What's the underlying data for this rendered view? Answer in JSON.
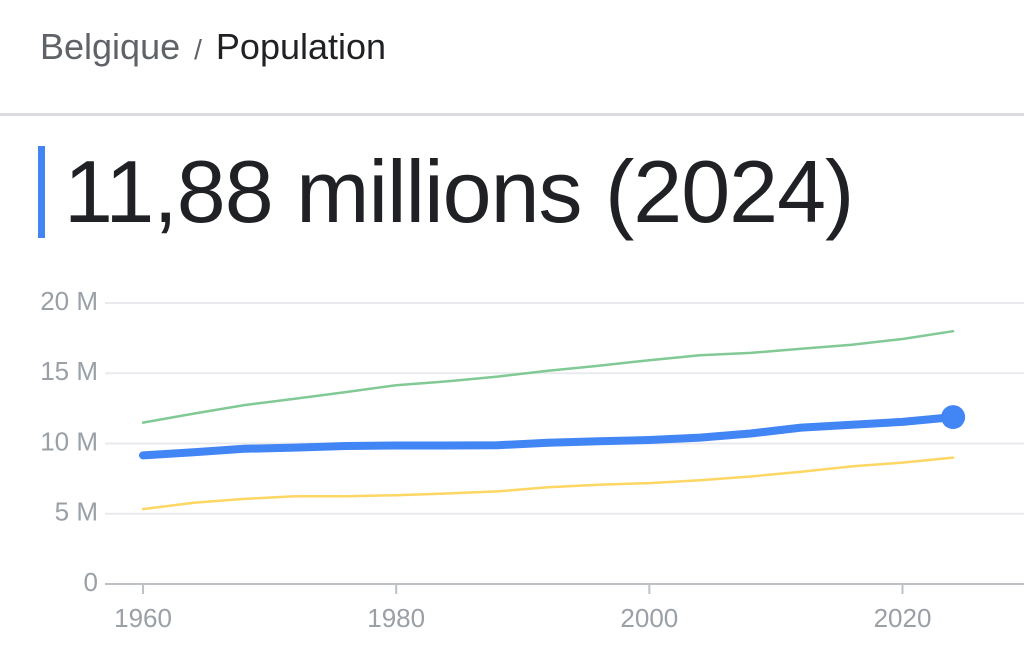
{
  "header": {
    "breadcrumb": [
      "Belgique",
      "/",
      "Population"
    ]
  },
  "headline": "11,88 millions (2024)",
  "chart_data": {
    "type": "line",
    "x": [
      1960,
      1964,
      1968,
      1972,
      1976,
      1980,
      1984,
      1988,
      1992,
      1996,
      2000,
      2004,
      2008,
      2012,
      2016,
      2020,
      2024
    ],
    "series": [
      {
        "color": "#81c995",
        "values": [
          11.49,
          12.13,
          12.73,
          13.19,
          13.66,
          14.15,
          14.42,
          14.76,
          15.18,
          15.53,
          15.93,
          16.28,
          16.45,
          16.75,
          17.03,
          17.44,
          17.99
        ]
      },
      {
        "color": "#fdd663",
        "values": [
          5.33,
          5.79,
          6.06,
          6.25,
          6.24,
          6.32,
          6.44,
          6.59,
          6.88,
          7.07,
          7.18,
          7.39,
          7.65,
          7.99,
          8.37,
          8.64,
          9.0
        ]
      },
      {
        "color": "#4285f4",
        "values": [
          9.15,
          9.38,
          9.62,
          9.71,
          9.82,
          9.86,
          9.86,
          9.88,
          10.05,
          10.16,
          10.25,
          10.42,
          10.71,
          11.13,
          11.33,
          11.54,
          11.88
        ]
      }
    ],
    "xlim": [
      1956.6,
      2029.6
    ],
    "ylim": [
      0,
      20
    ],
    "xticks": [
      1960,
      1980,
      2000,
      2020
    ],
    "yticks": [
      0,
      {
        "value": 5,
        "label": "5 M"
      },
      {
        "value": 10,
        "label": "10 M"
      },
      {
        "value": 15,
        "label": "15 M"
      },
      {
        "value": 20,
        "label": "20 M"
      }
    ],
    "grid": true
  }
}
